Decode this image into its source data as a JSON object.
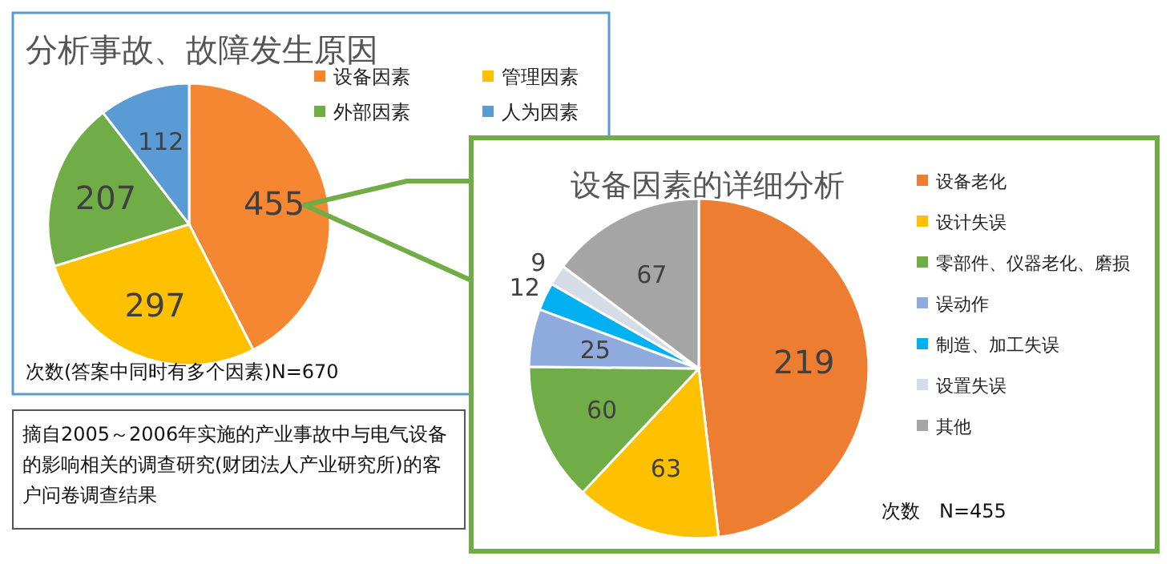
{
  "chart_data": [
    {
      "type": "pie",
      "title": "分析事故、故障发生原因",
      "categories": [
        "设备因素",
        "管理因素",
        "外部因素",
        "人为因素"
      ],
      "values": [
        455,
        297,
        207,
        112
      ],
      "colors": [
        "#f58632",
        "#ffc000",
        "#70ad47",
        "#5b9bd5"
      ],
      "data_labels": true,
      "legend": "top right",
      "annotations": [
        "次数(答案中同时有多个因素)N=670",
        "摘自2005～2006年实施的产业事故中与电气设备的影响相关的调查研究(财团法人产业研究所)的客户问卷调查结果"
      ]
    },
    {
      "type": "pie",
      "title": "设备因素的详细分析",
      "categories": [
        "设备老化",
        "设计失误",
        "零部件、仪器老化、磨损",
        "误动作",
        "制造、加工失误",
        "设置失误",
        "其他"
      ],
      "values": [
        219,
        63,
        60,
        25,
        12,
        9,
        67
      ],
      "colors": [
        "#ed7d31",
        "#ffc000",
        "#70ad47",
        "#8faadc",
        "#00b0f0",
        "#d6dce5",
        "#a5a5a5"
      ],
      "data_labels": true,
      "legend": "right",
      "annotations": [
        "次数　N=455"
      ]
    }
  ]
}
